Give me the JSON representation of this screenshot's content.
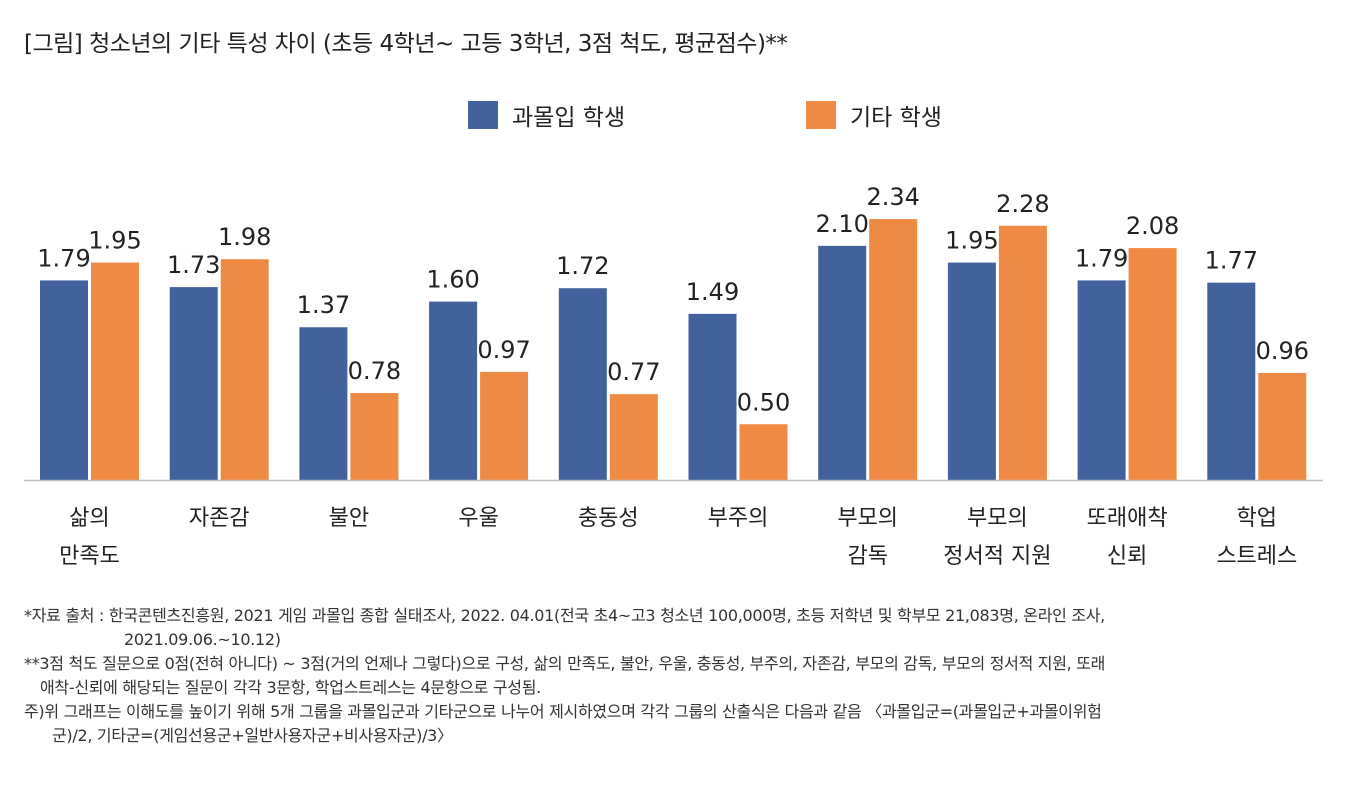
{
  "title": "[그림] 청소년의 기타 특성 차이 (초등 4학년~ 고등 3학년, 3점 척도, 평균점수)**",
  "colors": {
    "series1": "#41629d",
    "series2": "#ef8a45",
    "axis": "#bfbfbf"
  },
  "chart_data": {
    "type": "bar",
    "title": "청소년의 기타 특성 차이",
    "categories": [
      [
        "삶의",
        "만족도"
      ],
      [
        "자존감"
      ],
      [
        "불안"
      ],
      [
        "우울"
      ],
      [
        "충동성"
      ],
      [
        "부주의"
      ],
      [
        "부모의",
        "감독"
      ],
      [
        "부모의",
        "정서적 지원"
      ],
      [
        "또래애착",
        "신뢰"
      ],
      [
        "학업",
        "스트레스"
      ]
    ],
    "series": [
      {
        "name": "과몰입 학생",
        "values": [
          1.79,
          1.73,
          1.37,
          1.6,
          1.72,
          1.49,
          2.1,
          1.95,
          1.79,
          1.77
        ]
      },
      {
        "name": "기타 학생",
        "values": [
          1.95,
          1.98,
          0.78,
          0.97,
          0.77,
          0.5,
          2.34,
          2.28,
          2.08,
          0.96
        ]
      }
    ],
    "ylim": [
      0,
      3
    ],
    "xlabel": "",
    "ylabel": "",
    "grid": false,
    "legend": "top-center"
  },
  "notes": {
    "source_1": "*자료 출처 : 한국콘텐츠진흥원, 2021 게임 과몰입 종합 실태조사, 2022. 04.01(전국 초4~고3 청소년 100,000명, 초등 저학년 및 학부모 21,083명, 온라인 조사,",
    "source_2": "2021.09.06.~10.12)",
    "scale_1": "**3점 척도 질문으로 0점(전혀 아니다) ~ 3점(거의 언제나 그렇다)으로 구성, 삶의 만족도, 불안, 우울, 충동성, 부주의, 자존감, 부모의 감독, 부모의 정서적 지원, 또래",
    "scale_2": "애착-신뢰에 해당되는 질문이 각각 3문항, 학업스트레스는 4문항으로 구성됨.",
    "remark_1": "주)위 그래프는 이해도를 높이기 위해 5개 그룹을 과몰입군과 기타군으로 나누어 제시하였으며 각각 그룹의 산출식은 다음과 같음 〈과몰입군=(과몰입군+과몰이위험",
    "remark_2": "군)/2, 기타군=(게임선용군+일반사용자군+비사용자군)/3〉"
  }
}
